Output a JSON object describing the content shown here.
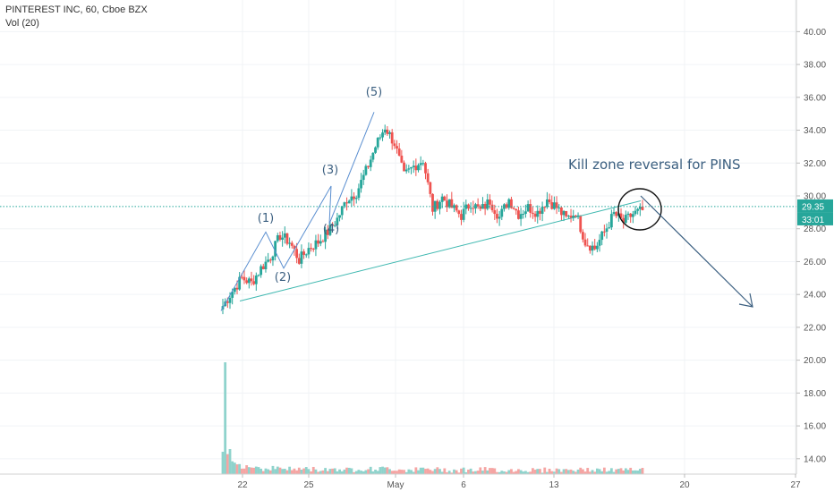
{
  "header": {
    "title": "PINTEREST INC, 60, Cboe BZX",
    "volume_label": "Vol (20)"
  },
  "colors": {
    "up": "#26a69a",
    "down": "#ef5350",
    "up_volume": "#8fd3cc",
    "down_volume": "#f5a5a3",
    "wave": "#5b8fd0",
    "trend": "#3fb8b0",
    "price_line": "#26a69a",
    "price_tag": "#26a69a",
    "countdown_tag": "#26a69a",
    "annotation": "#3b5f80"
  },
  "chart_data": {
    "type": "candlestick",
    "ylim": [
      13.5,
      41
    ],
    "y_ticks": [
      "14.00",
      "16.00",
      "18.00",
      "20.00",
      "22.00",
      "24.00",
      "26.00",
      "28.00",
      "30.00",
      "32.00",
      "34.00",
      "36.00",
      "38.00",
      "40.00"
    ],
    "x_ticks": [
      "22",
      "25",
      "May",
      "6",
      "13",
      "20",
      "27"
    ],
    "last_price": "29.35",
    "countdown": "33:01",
    "close_path": [
      23.3,
      24.2,
      25.0,
      24.7,
      25.6,
      26.3,
      27.6,
      27.2,
      26.1,
      26.8,
      27.2,
      27.8,
      28.6,
      29.8,
      30.2,
      31.5,
      33.0,
      34.2,
      33.2,
      31.2,
      31.8,
      32.2,
      29.2,
      29.9,
      29.3,
      28.8,
      29.6,
      29.1,
      29.7,
      28.7,
      29.8,
      28.9,
      29.3,
      29.0,
      29.8,
      29.3,
      28.6,
      29.0,
      27.2,
      26.8,
      27.8,
      28.9,
      28.4,
      28.9,
      29.1
    ],
    "volume_profile": [
      2.0,
      1.0,
      0.6,
      0.5,
      0.3,
      0.4,
      0.35,
      0.25,
      0.3,
      0.25,
      0.2,
      0.3,
      0.25,
      0.2,
      0.3,
      0.25,
      0.3,
      0.3,
      0.25,
      0.2,
      0.2,
      0.25,
      0.2,
      0.2,
      0.15,
      0.2,
      0.15,
      0.2,
      0.2,
      0.15,
      0.15,
      0.2,
      0.15,
      0.15,
      0.2,
      0.15,
      0.2,
      0.15,
      0.2,
      0.15,
      0.15,
      0.15,
      0.15,
      0.15,
      0.2
    ],
    "waves": [
      {
        "label": "(1)",
        "price": 27.8
      },
      {
        "label": "(2)",
        "price": 25.6
      },
      {
        "label": "(3)",
        "price": 30.6
      },
      {
        "label": "(4)",
        "price": 28.3
      },
      {
        "label": "(5)",
        "price": 35.1
      }
    ],
    "annotation": "Kill zone reversal for PINS"
  }
}
